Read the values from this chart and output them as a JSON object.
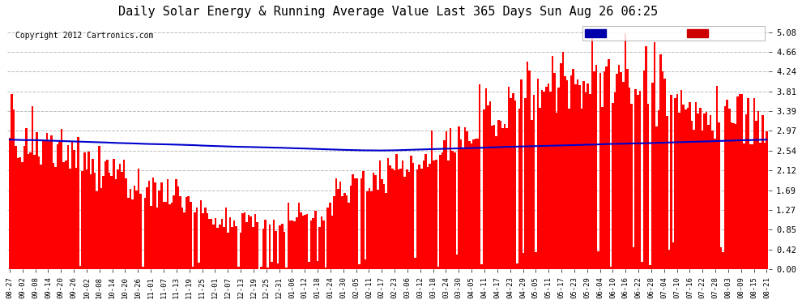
{
  "title": "Daily Solar Energy & Running Average Value Last 365 Days Sun Aug 26 06:25",
  "copyright": "Copyright 2012 Cartronics.com",
  "yticks": [
    0.0,
    0.42,
    0.85,
    1.27,
    1.69,
    2.12,
    2.54,
    2.97,
    3.39,
    3.81,
    4.24,
    4.66,
    5.08
  ],
  "ymax": 5.3,
  "ymin": 0.0,
  "bar_color": "#ff0000",
  "avg_color": "#0000cc",
  "bg_color": "#ffffff",
  "grid_color": "#bbbbbb",
  "legend_avg_color": "#0000aa",
  "legend_daily_color": "#cc0000",
  "xtick_labels": [
    "08-27",
    "09-02",
    "09-08",
    "09-14",
    "09-20",
    "09-26",
    "10-02",
    "10-08",
    "10-14",
    "10-20",
    "10-26",
    "11-01",
    "11-07",
    "11-13",
    "11-19",
    "11-25",
    "12-01",
    "12-07",
    "12-13",
    "12-19",
    "12-25",
    "12-31",
    "01-06",
    "01-12",
    "01-18",
    "01-24",
    "01-30",
    "02-05",
    "02-11",
    "02-17",
    "02-23",
    "03-06",
    "03-12",
    "03-18",
    "03-24",
    "03-30",
    "04-05",
    "04-11",
    "04-17",
    "04-23",
    "04-29",
    "05-05",
    "05-11",
    "05-17",
    "05-23",
    "05-29",
    "06-04",
    "06-10",
    "06-16",
    "06-22",
    "06-28",
    "07-04",
    "07-10",
    "07-16",
    "07-22",
    "07-28",
    "08-03",
    "08-09",
    "08-15",
    "08-21"
  ],
  "n_bars": 365,
  "seed": 42
}
